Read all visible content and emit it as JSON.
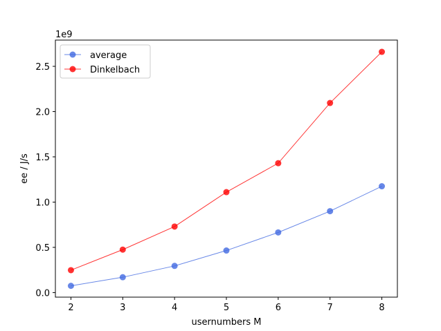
{
  "chart_data": {
    "type": "line",
    "x": [
      2,
      3,
      4,
      5,
      6,
      7,
      8
    ],
    "series": [
      {
        "name": "average",
        "values": [
          75000000,
          170000000,
          295000000,
          465000000,
          665000000,
          900000000,
          1175000000
        ],
        "color": "#4169e1"
      },
      {
        "name": "Dinkelbach",
        "values": [
          248000000,
          475000000,
          730000000,
          1110000000,
          1430000000,
          2095000000,
          2660000000
        ],
        "color": "#ff0000"
      }
    ],
    "xlabel": "usernumbers M",
    "ylabel": "ee / J/s",
    "y_offset_label": "1e9",
    "xlim": [
      1.7,
      8.3
    ],
    "ylim": [
      -50000000,
      2790000000
    ],
    "xticks": [
      2,
      3,
      4,
      5,
      6,
      7,
      8
    ],
    "xtick_labels": [
      "2",
      "3",
      "4",
      "5",
      "6",
      "7",
      "8"
    ],
    "yticks": [
      0,
      500000000,
      1000000000,
      1500000000,
      2000000000,
      2500000000
    ],
    "ytick_labels": [
      "0.0",
      "0.5",
      "1.0",
      "1.5",
      "2.0",
      "2.5"
    ],
    "grid": false,
    "legend_position": "top-left"
  }
}
